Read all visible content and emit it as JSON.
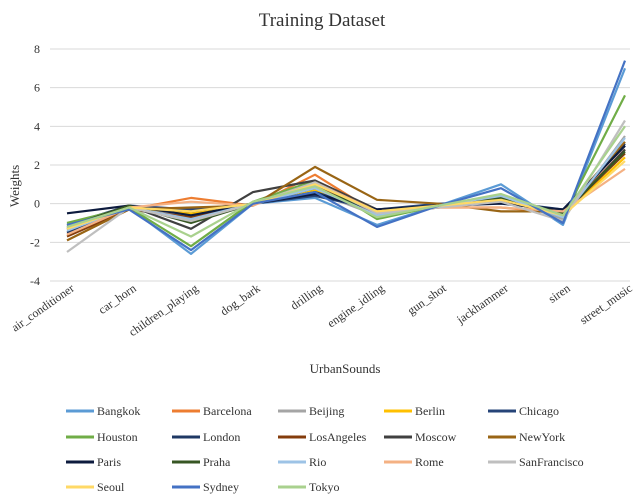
{
  "chart_data": {
    "type": "line",
    "title": "Training Dataset",
    "xlabel": "UrbanSounds",
    "ylabel": "Weights",
    "ylim": [
      -4,
      8
    ],
    "yticks": [
      -4,
      -2,
      0,
      2,
      4,
      6,
      8
    ],
    "grid": true,
    "legend": "bottom",
    "categories": [
      "air_conditioner",
      "car_horn",
      "children_playing",
      "dog_bark",
      "drilling",
      "engine_idling",
      "gun_shot",
      "jackhammer",
      "siren",
      "street_music"
    ],
    "series": [
      {
        "name": "Bangkok",
        "color": "#5b9bd5",
        "values": [
          -1.3,
          -0.2,
          -2.6,
          0.0,
          0.3,
          -1.1,
          -0.1,
          1.0,
          -1.1,
          7.0
        ]
      },
      {
        "name": "Barcelona",
        "color": "#ed7d31",
        "values": [
          -1.6,
          -0.3,
          0.3,
          -0.1,
          1.5,
          -0.5,
          -0.2,
          -0.2,
          -0.5,
          2.8
        ]
      },
      {
        "name": "Beijing",
        "color": "#a5a5a5",
        "values": [
          -1.4,
          -0.2,
          -0.6,
          0.0,
          0.6,
          -0.6,
          -0.1,
          0.3,
          -0.8,
          3.5
        ]
      },
      {
        "name": "Berlin",
        "color": "#ffc000",
        "values": [
          -1.3,
          -0.2,
          -0.5,
          0.0,
          0.7,
          -0.5,
          -0.1,
          0.2,
          -0.6,
          2.4
        ]
      },
      {
        "name": "Chicago",
        "color": "#264478",
        "values": [
          -1.1,
          -0.1,
          -0.3,
          0.0,
          0.4,
          -0.3,
          0.0,
          0.1,
          -0.3,
          3.0
        ]
      },
      {
        "name": "Houston",
        "color": "#70ad47",
        "values": [
          -1.0,
          -0.2,
          -2.2,
          0.1,
          1.2,
          -0.8,
          -0.1,
          0.4,
          -0.7,
          5.6
        ]
      },
      {
        "name": "London",
        "color": "#1f3864",
        "values": [
          -1.5,
          -0.2,
          -0.4,
          0.0,
          0.6,
          -0.4,
          -0.1,
          0.1,
          -0.5,
          3.1
        ]
      },
      {
        "name": "LosAngeles",
        "color": "#843c0c",
        "values": [
          -1.7,
          -0.3,
          -0.7,
          0.0,
          0.9,
          -0.5,
          -0.2,
          0.1,
          -0.5,
          2.6
        ]
      },
      {
        "name": "Moscow",
        "color": "#404040",
        "values": [
          -1.3,
          -0.1,
          -1.3,
          0.6,
          1.2,
          -0.3,
          -0.1,
          0.3,
          -0.6,
          2.8
        ]
      },
      {
        "name": "NewYork",
        "color": "#996515",
        "values": [
          -1.9,
          -0.3,
          -0.2,
          -0.1,
          1.9,
          0.2,
          0.0,
          -0.4,
          -0.4,
          3.2
        ]
      },
      {
        "name": "Paris",
        "color": "#0d1b3e",
        "values": [
          -0.5,
          -0.1,
          -0.6,
          0.0,
          0.5,
          -0.3,
          -0.1,
          0.0,
          -0.3,
          3.0
        ]
      },
      {
        "name": "Praha",
        "color": "#375623",
        "values": [
          -1.2,
          -0.1,
          -1.0,
          0.0,
          0.8,
          -0.4,
          -0.1,
          0.3,
          -0.5,
          2.7
        ]
      },
      {
        "name": "Rio",
        "color": "#9dc3e6",
        "values": [
          -1.4,
          -0.2,
          -0.8,
          0.0,
          0.8,
          -0.6,
          -0.1,
          0.4,
          -0.7,
          3.4
        ]
      },
      {
        "name": "Rome",
        "color": "#f4b183",
        "values": [
          -1.6,
          -0.2,
          0.1,
          -0.1,
          1.1,
          -0.4,
          -0.2,
          -0.2,
          -0.4,
          1.8
        ]
      },
      {
        "name": "SanFrancisco",
        "color": "#bfbfbf",
        "values": [
          -2.5,
          -0.2,
          -0.9,
          0.0,
          1.1,
          -0.5,
          -0.2,
          0.1,
          -0.9,
          4.3
        ]
      },
      {
        "name": "Seoul",
        "color": "#ffd966",
        "values": [
          -1.3,
          -0.2,
          -0.4,
          0.0,
          1.0,
          -0.4,
          -0.1,
          0.2,
          -0.6,
          2.2
        ]
      },
      {
        "name": "Sydney",
        "color": "#4472c4",
        "values": [
          -1.1,
          -0.3,
          -2.4,
          0.0,
          0.6,
          -1.2,
          -0.1,
          0.8,
          -1.0,
          7.4
        ]
      },
      {
        "name": "Tokyo",
        "color": "#a9d18e",
        "values": [
          -1.2,
          -0.2,
          -1.7,
          0.1,
          0.9,
          -0.7,
          -0.1,
          0.5,
          -0.6,
          4.0
        ]
      }
    ]
  }
}
